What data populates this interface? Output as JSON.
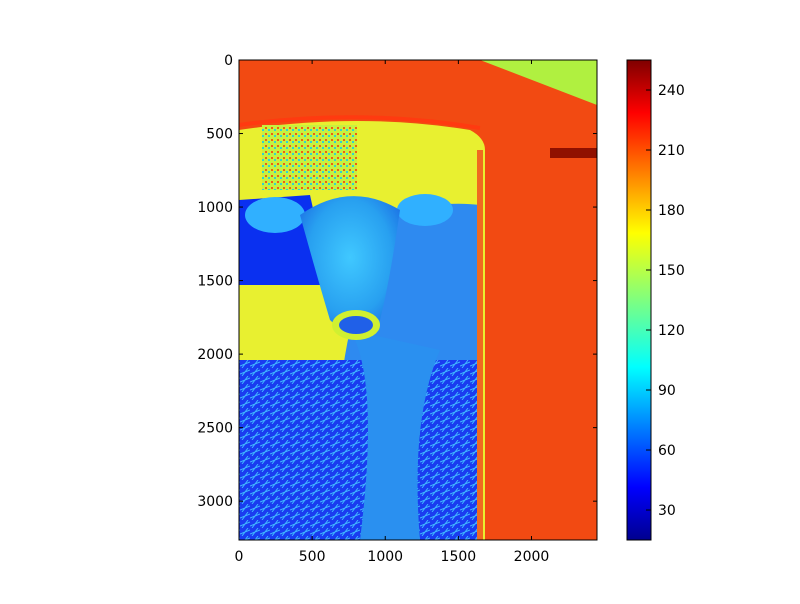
{
  "chart_data": {
    "type": "heatmap",
    "title": "",
    "xlabel": "",
    "ylabel": "",
    "xlim": [
      0,
      2448
    ],
    "ylim": [
      3264,
      0
    ],
    "x_ticks": [
      0,
      500,
      1000,
      1500,
      2000
    ],
    "y_ticks": [
      0,
      500,
      1000,
      1500,
      2000,
      2500,
      3000
    ],
    "colormap": "jet",
    "colorbar": {
      "range": [
        15,
        255
      ],
      "ticks": [
        30,
        60,
        90,
        120,
        150,
        180,
        210,
        240
      ]
    },
    "image_content": "false-color intensity image of a calf standing in the doorway of a hutch on straw",
    "grid": false
  }
}
